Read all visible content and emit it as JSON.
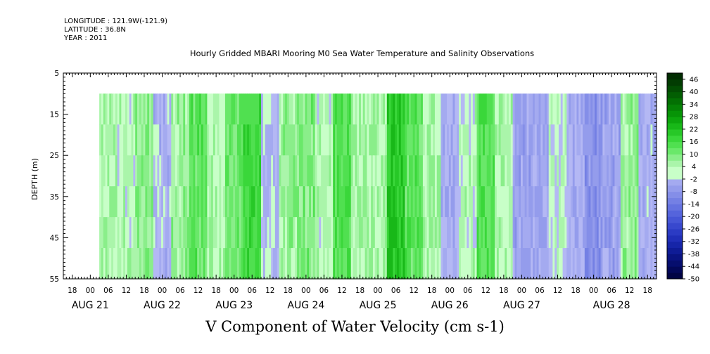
{
  "header": {
    "longitude": "LONGITUDE : 121.9W(-121.9)",
    "latitude": "LATITUDE : 36.8N",
    "year": "YEAR : 2011"
  },
  "chart_data": {
    "type": "heatmap",
    "title": "Hourly Gridded MBARI Mooring M0 Sea Water Temperature and Salinity Observations",
    "xlabel": "V Component of Water Velocity (cm s-1)",
    "ylabel": "DEPTH (m)",
    "ylim": [
      5,
      55
    ],
    "y_inverted": true,
    "y_ticks": [
      "5",
      "15",
      "25",
      "35",
      "45",
      "55"
    ],
    "x_range_hours": [
      "Aug 20 15:00",
      "Aug 28 21:00"
    ],
    "x_hour_ticks": [
      "18",
      "00",
      "06",
      "12",
      "18",
      "00",
      "06",
      "12",
      "18",
      "00",
      "06",
      "12",
      "18",
      "00",
      "06",
      "12",
      "18",
      "00",
      "06",
      "12",
      "18",
      "00",
      "06",
      "12",
      "18",
      "00",
      "06",
      "12",
      "18",
      "00",
      "06",
      "12",
      "18"
    ],
    "x_day_labels": [
      "AUG 21",
      "AUG 22",
      "AUG 23",
      "AUG 24",
      "AUG 25",
      "AUG 26",
      "AUG 27",
      "AUG 28"
    ],
    "data_depth_range": [
      10,
      55
    ],
    "data_time_start": "Aug 21 03:00",
    "colorbar": {
      "labels": [
        "46",
        "40",
        "34",
        "28",
        "22",
        "16",
        "10",
        "4",
        "-2",
        "-8",
        "-14",
        "-20",
        "-26",
        "-32",
        "-38",
        "-44",
        "-50"
      ],
      "levels": [
        -50,
        -47,
        -44,
        -41,
        -38,
        -35,
        -32,
        -29,
        -26,
        -23,
        -20,
        -17,
        -14,
        -11,
        -8,
        -5,
        -2,
        1,
        4,
        7,
        10,
        13,
        16,
        19,
        22,
        25,
        28,
        31,
        34,
        37,
        40,
        43,
        46,
        49
      ],
      "colors_positive_low_to_high": [
        "#c8ffc8",
        "#aaf5aa",
        "#8aee8a",
        "#6ae86a",
        "#50e050",
        "#3ad73a",
        "#27c827",
        "#18b818",
        "#0da60d",
        "#079407",
        "#058205",
        "#037003",
        "#025e02",
        "#024d02",
        "#023c02",
        "#012c01",
        "#011e01"
      ],
      "colors_negative_high_to_low": [
        "#b4b8f4",
        "#a4aaf0",
        "#949cec",
        "#848ee8",
        "#7480e4",
        "#6472e0",
        "#5564dc",
        "#4656d6",
        "#3848ce",
        "#2b3bc4",
        "#202fb8",
        "#1625a8",
        "#0f1c96",
        "#0a1482",
        "#060e6e",
        "#030859",
        "#010444"
      ]
    },
    "bands": [
      {
        "start": "Aug 21 03:00",
        "end": "Aug 21 09:00",
        "v": 5
      },
      {
        "start": "Aug 21 09:00",
        "end": "Aug 21 15:00",
        "v": 3
      },
      {
        "start": "Aug 21 15:00",
        "end": "Aug 21 21:00",
        "v": 8
      },
      {
        "start": "Aug 21 21:00",
        "end": "Aug 22 03:00",
        "v": -3
      },
      {
        "start": "Aug 22 03:00",
        "end": "Aug 22 09:00",
        "v": 6
      },
      {
        "start": "Aug 22 09:00",
        "end": "Aug 22 15:00",
        "v": 12
      },
      {
        "start": "Aug 22 15:00",
        "end": "Aug 22 21:00",
        "v": 4
      },
      {
        "start": "Aug 22 21:00",
        "end": "Aug 23 03:00",
        "v": 10
      },
      {
        "start": "Aug 23 03:00",
        "end": "Aug 23 09:00",
        "v": 16
      },
      {
        "start": "Aug 23 09:00",
        "end": "Aug 23 15:00",
        "v": -2
      },
      {
        "start": "Aug 23 15:00",
        "end": "Aug 23 21:00",
        "v": 6
      },
      {
        "start": "Aug 23 21:00",
        "end": "Aug 24 03:00",
        "v": 9
      },
      {
        "start": "Aug 24 03:00",
        "end": "Aug 24 09:00",
        "v": 3
      },
      {
        "start": "Aug 24 09:00",
        "end": "Aug 24 15:00",
        "v": 14
      },
      {
        "start": "Aug 24 15:00",
        "end": "Aug 24 21:00",
        "v": 5
      },
      {
        "start": "Aug 24 21:00",
        "end": "Aug 25 03:00",
        "v": 4
      },
      {
        "start": "Aug 25 03:00",
        "end": "Aug 25 09:00",
        "v": 20
      },
      {
        "start": "Aug 25 09:00",
        "end": "Aug 25 15:00",
        "v": 12
      },
      {
        "start": "Aug 25 15:00",
        "end": "Aug 25 21:00",
        "v": 5
      },
      {
        "start": "Aug 25 21:00",
        "end": "Aug 26 03:00",
        "v": -4
      },
      {
        "start": "Aug 26 03:00",
        "end": "Aug 26 09:00",
        "v": 3
      },
      {
        "start": "Aug 26 09:00",
        "end": "Aug 26 15:00",
        "v": 13
      },
      {
        "start": "Aug 26 15:00",
        "end": "Aug 26 21:00",
        "v": 4
      },
      {
        "start": "Aug 26 21:00",
        "end": "Aug 27 03:00",
        "v": -6
      },
      {
        "start": "Aug 27 03:00",
        "end": "Aug 27 09:00",
        "v": -5
      },
      {
        "start": "Aug 27 09:00",
        "end": "Aug 27 15:00",
        "v": 2
      },
      {
        "start": "Aug 27 15:00",
        "end": "Aug 27 21:00",
        "v": -4
      },
      {
        "start": "Aug 27 21:00",
        "end": "Aug 28 03:00",
        "v": -9
      },
      {
        "start": "Aug 28 03:00",
        "end": "Aug 28 09:00",
        "v": -6
      },
      {
        "start": "Aug 28 09:00",
        "end": "Aug 28 15:00",
        "v": 6
      },
      {
        "start": "Aug 28 15:00",
        "end": "Aug 28 21:00",
        "v": -3
      }
    ]
  }
}
